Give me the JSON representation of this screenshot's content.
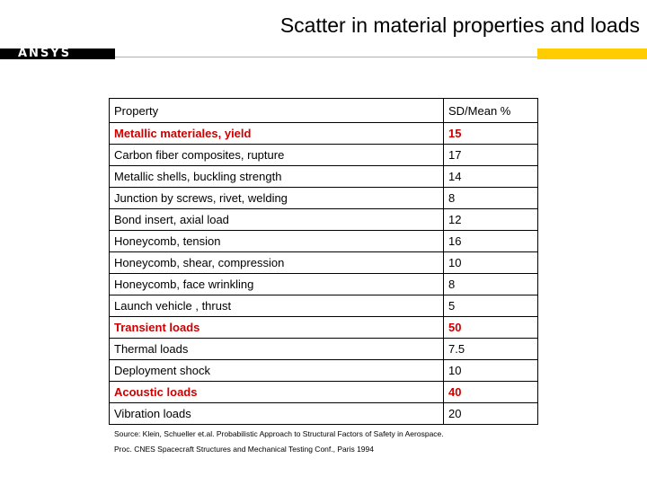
{
  "title": "Scatter in material properties and loads",
  "logo": "ANSYS",
  "colors": {
    "highlight": "#cc0000",
    "banner_black": "#000000",
    "banner_yellow": "#ffcc00"
  },
  "table": {
    "headers": [
      "Property",
      "SD/Mean %"
    ],
    "rows": [
      {
        "property": "Metallic materiales, yield",
        "value": "15",
        "highlight": true
      },
      {
        "property": "Carbon fiber composites, rupture",
        "value": "17",
        "highlight": false
      },
      {
        "property": "Metallic shells, buckling strength",
        "value": "14",
        "highlight": false
      },
      {
        "property": "Junction by screws, rivet, welding",
        "value": "8",
        "highlight": false
      },
      {
        "property": "Bond insert, axial load",
        "value": "12",
        "highlight": false
      },
      {
        "property": "Honeycomb, tension",
        "value": "16",
        "highlight": false
      },
      {
        "property": "Honeycomb, shear, compression",
        "value": "10",
        "highlight": false
      },
      {
        "property": "Honeycomb, face wrinkling",
        "value": "8",
        "highlight": false
      },
      {
        "property": "Launch vehicle , thrust",
        "value": "5",
        "highlight": false
      },
      {
        "property": "Transient loads",
        "value": "50",
        "highlight": true
      },
      {
        "property": "Thermal loads",
        "value": "7.5",
        "highlight": false
      },
      {
        "property": "Deployment shock",
        "value": "10",
        "highlight": false
      },
      {
        "property": "Acoustic loads",
        "value": "40",
        "highlight": true
      },
      {
        "property": "Vibration loads",
        "value": "20",
        "highlight": false
      }
    ]
  },
  "source": {
    "line1": "Source: Klein, Schueller et.al. Probabilistic Approach to Structural Factors of Safety in Aerospace.",
    "line2": "Proc. CNES Spacecraft Structures and Mechanical Testing Conf., Paris 1994"
  }
}
